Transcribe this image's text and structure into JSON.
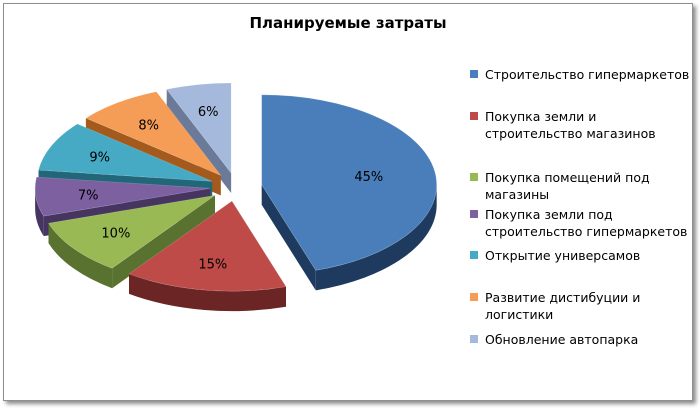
{
  "chart_data": {
    "type": "pie",
    "title": "Планируемые затраты",
    "categories": [
      "Строительство гипермаркетов",
      "Покупка земли и строительство магазинов",
      "Покупка помещений под магазины",
      "Покупка земли под строительство гипермаркетов",
      "Открытие универсамов",
      "Развитие дистибуции и логистики",
      "Обновление автопарка"
    ],
    "values": [
      45,
      15,
      10,
      7,
      9,
      8,
      6
    ],
    "data_labels": [
      "45%",
      "15%",
      "10%",
      "7%",
      "9%",
      "8%",
      "6%"
    ],
    "colors": [
      "#4a7ebb",
      "#be4b48",
      "#98b954",
      "#7d60a0",
      "#46aac5",
      "#f59d56",
      "#a5b9dc"
    ],
    "side_colors": [
      "#1f3a5f",
      "#6a2524",
      "#5a7230",
      "#463560",
      "#226779",
      "#a35a1c",
      "#6a7a98"
    ],
    "style": "3d-exploded",
    "legend_position": "right"
  }
}
